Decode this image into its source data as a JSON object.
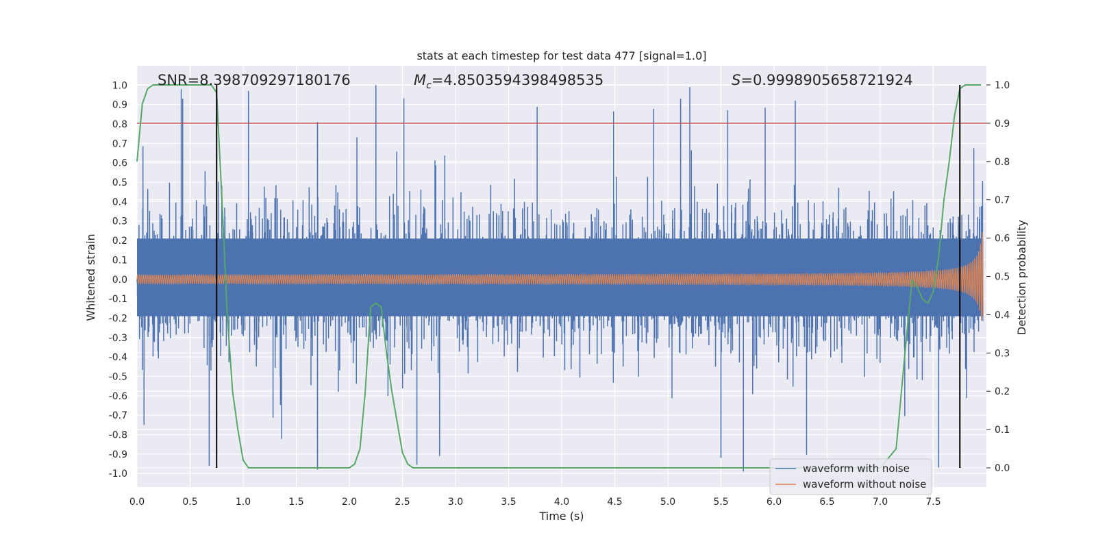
{
  "chart_data": {
    "type": "line",
    "title": "stats at each timestep for test data 477 [signal=1.0]",
    "xlabel": "Time (s)",
    "ylabel": "Whitened strain",
    "y2label": "Detection probability",
    "xlim": [
      0.0,
      8.0
    ],
    "ylim": [
      -1.07,
      1.1
    ],
    "y2lim": [
      -0.05,
      1.05
    ],
    "x_ticks": [
      0.0,
      0.5,
      1.0,
      1.5,
      2.0,
      2.5,
      3.0,
      3.5,
      4.0,
      4.5,
      5.0,
      5.5,
      6.0,
      6.5,
      7.0,
      7.5
    ],
    "y_ticks": [
      -1.0,
      -0.9,
      -0.8,
      -0.7,
      -0.6,
      -0.5,
      -0.4,
      -0.3,
      -0.2,
      -0.1,
      0.0,
      0.1,
      0.2,
      0.3,
      0.4,
      0.5,
      0.6,
      0.7,
      0.8,
      0.9,
      1.0
    ],
    "y2_ticks": [
      0.0,
      0.1,
      0.2,
      0.3,
      0.4,
      0.5,
      0.6,
      0.7,
      0.8,
      0.9,
      1.0
    ],
    "threshold": {
      "value": 0.9,
      "axis": "right",
      "color": "#c44e52"
    },
    "vertical_markers": [
      0.75,
      7.75
    ],
    "annotations": {
      "snr_label": "SNR=8.398709297180176",
      "mc_symbol": "M",
      "mc_sub": "c",
      "mc_value": "=4.8503594398498535",
      "s_symbol": "S",
      "s_value": "=0.9998905658721924"
    },
    "series": [
      {
        "name": "waveform with noise",
        "color": "#4c72b0",
        "axis": "left",
        "envelope_note": "dense noisy strain, typical amplitude ~0.3-0.6 with spikes to +/-1.0",
        "spikes": [
          {
            "x": 0.43,
            "y": 0.93
          },
          {
            "x": 0.75,
            "y": 0.97
          },
          {
            "x": 1.05,
            "y": 0.97
          },
          {
            "x": 1.7,
            "y": 0.81
          },
          {
            "x": 2.25,
            "y": 1.0
          },
          {
            "x": 5.12,
            "y": 0.93
          },
          {
            "x": 6.2,
            "y": 0.92
          },
          {
            "x": 0.68,
            "y": -0.96
          },
          {
            "x": 1.7,
            "y": -0.98
          },
          {
            "x": 2.85,
            "y": -0.91
          },
          {
            "x": 5.5,
            "y": -0.92
          },
          {
            "x": 7.55,
            "y": -0.97
          }
        ]
      },
      {
        "name": "waveform without noise",
        "color": "#dd8452",
        "axis": "left",
        "chirp": {
          "amp_start": 0.02,
          "amp_end": 0.25,
          "t_end": 7.97
        }
      },
      {
        "name": "detection probability",
        "color": "#55a868",
        "axis": "right",
        "x": [
          0.0,
          0.05,
          0.1,
          0.15,
          0.2,
          0.25,
          0.3,
          0.5,
          0.6,
          0.7,
          0.75,
          0.8,
          0.85,
          0.9,
          0.95,
          1.0,
          1.05,
          1.1,
          1.5,
          1.7,
          2.0,
          2.05,
          2.1,
          2.15,
          2.2,
          2.25,
          2.3,
          2.35,
          2.4,
          2.5,
          2.55,
          2.6,
          2.7,
          5.0,
          7.0,
          7.15,
          7.2,
          7.25,
          7.3,
          7.35,
          7.4,
          7.45,
          7.5,
          7.55,
          7.6,
          7.65,
          7.7,
          7.75,
          7.8,
          7.85,
          7.9,
          7.95
        ],
        "y": [
          0.8,
          0.95,
          0.99,
          1.0,
          1.0,
          1.0,
          1.0,
          1.0,
          1.0,
          1.0,
          0.98,
          0.7,
          0.4,
          0.2,
          0.1,
          0.02,
          0.0,
          0.0,
          0.0,
          0.0,
          0.0,
          0.01,
          0.05,
          0.2,
          0.42,
          0.43,
          0.42,
          0.3,
          0.2,
          0.04,
          0.01,
          0.0,
          0.0,
          0.0,
          0.0,
          0.05,
          0.2,
          0.35,
          0.49,
          0.47,
          0.44,
          0.43,
          0.46,
          0.55,
          0.7,
          0.8,
          0.92,
          0.99,
          1.0,
          1.0,
          1.0,
          1.0
        ]
      }
    ],
    "legend": {
      "position": "lower-right",
      "entries": [
        {
          "label": "waveform with noise",
          "color": "#4c72b0"
        },
        {
          "label": "waveform without noise",
          "color": "#dd8452"
        }
      ]
    }
  },
  "colors": {
    "plot_background": "#eaeaf2",
    "grid": "#ffffff",
    "marker": "#000000"
  }
}
